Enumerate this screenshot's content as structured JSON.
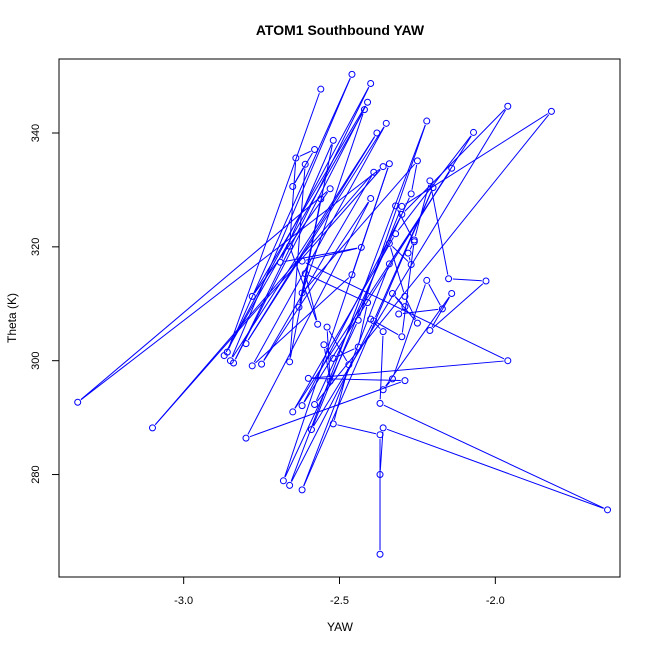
{
  "chart_data": {
    "type": "line",
    "title": "ATOM1 Southbound YAW",
    "xlabel": "YAW",
    "ylabel": "Theta (K)",
    "xlim": [
      -3.4,
      -1.6
    ],
    "ylim": [
      262,
      353
    ],
    "x_ticks": [
      -3.0,
      -2.5,
      -2.0
    ],
    "x_tick_labels": [
      "-3.0",
      "-2.5",
      "-2.0"
    ],
    "y_ticks": [
      280,
      300,
      320,
      340
    ],
    "y_tick_labels": [
      "280",
      "300",
      "320",
      "340"
    ],
    "series_color": "#0000ff",
    "markers": "open-circle",
    "grid": false,
    "series": [
      {
        "points": [
          [
            -2.56,
            347.7
          ],
          [
            -2.86,
            301.5
          ],
          [
            -2.46,
            350.3
          ],
          [
            -2.85,
            300.0
          ],
          [
            -2.38,
            340.0
          ],
          [
            -2.8,
            303.0
          ],
          [
            -2.35,
            341.7
          ],
          [
            -2.78,
            299.1
          ],
          [
            -2.46,
            315.1
          ],
          [
            -2.34,
            334.6
          ],
          [
            -2.68,
            278.9
          ],
          [
            -2.44,
            307.1
          ],
          [
            -2.22,
            342.1
          ],
          [
            -2.66,
            278.1
          ],
          [
            -2.39,
            307.0
          ],
          [
            -2.2,
            330.4
          ],
          [
            -2.62,
            277.3
          ],
          [
            -2.34,
            317.0
          ],
          [
            -2.14,
            333.8
          ],
          [
            -2.65,
            291.0
          ],
          [
            -2.32,
            322.3
          ],
          [
            -2.07,
            340.1
          ],
          [
            -2.62,
            292.1
          ],
          [
            -2.3,
            325.7
          ],
          [
            -1.96,
            344.7
          ],
          [
            -2.59,
            287.9
          ],
          [
            -2.3,
            327.1
          ],
          [
            -1.82,
            343.8
          ],
          [
            -2.58,
            292.3
          ],
          [
            -2.27,
            329.3
          ],
          [
            -2.25,
            335.1
          ],
          [
            -2.62,
            311.9
          ],
          [
            -2.42,
            344.1
          ],
          [
            -2.87,
            300.9
          ],
          [
            -2.4,
            348.7
          ],
          [
            -2.84,
            299.6
          ],
          [
            -2.41,
            345.4
          ],
          [
            -2.78,
            311.3
          ],
          [
            -2.53,
            330.2
          ],
          [
            -3.34,
            292.7
          ],
          [
            -2.36,
            334.1
          ],
          [
            -3.1,
            288.2
          ],
          [
            -2.39,
            333.1
          ],
          [
            -2.75,
            299.4
          ],
          [
            -2.4,
            328.5
          ],
          [
            -2.8,
            286.4
          ],
          [
            -2.29,
            296.5
          ],
          [
            -2.6,
            296.9
          ],
          [
            -1.96,
            300.0
          ],
          [
            -2.62,
            317.5
          ],
          [
            -2.43,
            319.9
          ],
          [
            -2.69,
            317.3
          ],
          [
            -2.52,
            338.7
          ],
          [
            -2.63,
            309.4
          ],
          [
            -2.56,
            328.4
          ],
          [
            -2.66,
            299.8
          ],
          [
            -2.61,
            334.5
          ],
          [
            -2.65,
            330.6
          ],
          [
            -2.58,
            337.1
          ],
          [
            -2.64,
            335.6
          ],
          [
            -2.66,
            320.1
          ],
          [
            -2.57,
            306.4
          ],
          [
            -2.61,
            315.3
          ],
          [
            -2.41,
            310.2
          ],
          [
            -2.44,
            302.4
          ],
          [
            -2.52,
            300.4
          ],
          [
            -2.55,
            302.8
          ],
          [
            -2.53,
            296.4
          ],
          [
            -2.54,
            305.9
          ],
          [
            -2.47,
            299.3
          ],
          [
            -2.52,
            288.9
          ],
          [
            -2.37,
            287.0
          ],
          [
            -2.37,
            266.0
          ],
          [
            -2.37,
            280.0
          ],
          [
            -2.36,
            288.2
          ],
          [
            -1.64,
            273.8
          ],
          [
            -2.37,
            292.5
          ],
          [
            -2.36,
            305.1
          ],
          [
            -2.4,
            307.3
          ],
          [
            -2.3,
            304.2
          ],
          [
            -2.26,
            321.2
          ],
          [
            -2.21,
            331.6
          ],
          [
            -2.15,
            314.4
          ],
          [
            -2.03,
            314.0
          ],
          [
            -2.21,
            305.3
          ],
          [
            -2.14,
            311.8
          ],
          [
            -2.36,
            294.9
          ],
          [
            -2.33,
            296.8
          ],
          [
            -2.22,
            314.1
          ],
          [
            -2.17,
            309.1
          ],
          [
            -2.31,
            308.2
          ],
          [
            -2.29,
            309.5
          ],
          [
            -2.33,
            311.8
          ],
          [
            -2.25,
            306.6
          ],
          [
            -2.29,
            311.3
          ],
          [
            -2.34,
            320.6
          ],
          [
            -2.27,
            316.9
          ],
          [
            -2.28,
            318.9
          ],
          [
            -2.26,
            320.9
          ],
          [
            -2.32,
            327.2
          ]
        ]
      }
    ]
  }
}
